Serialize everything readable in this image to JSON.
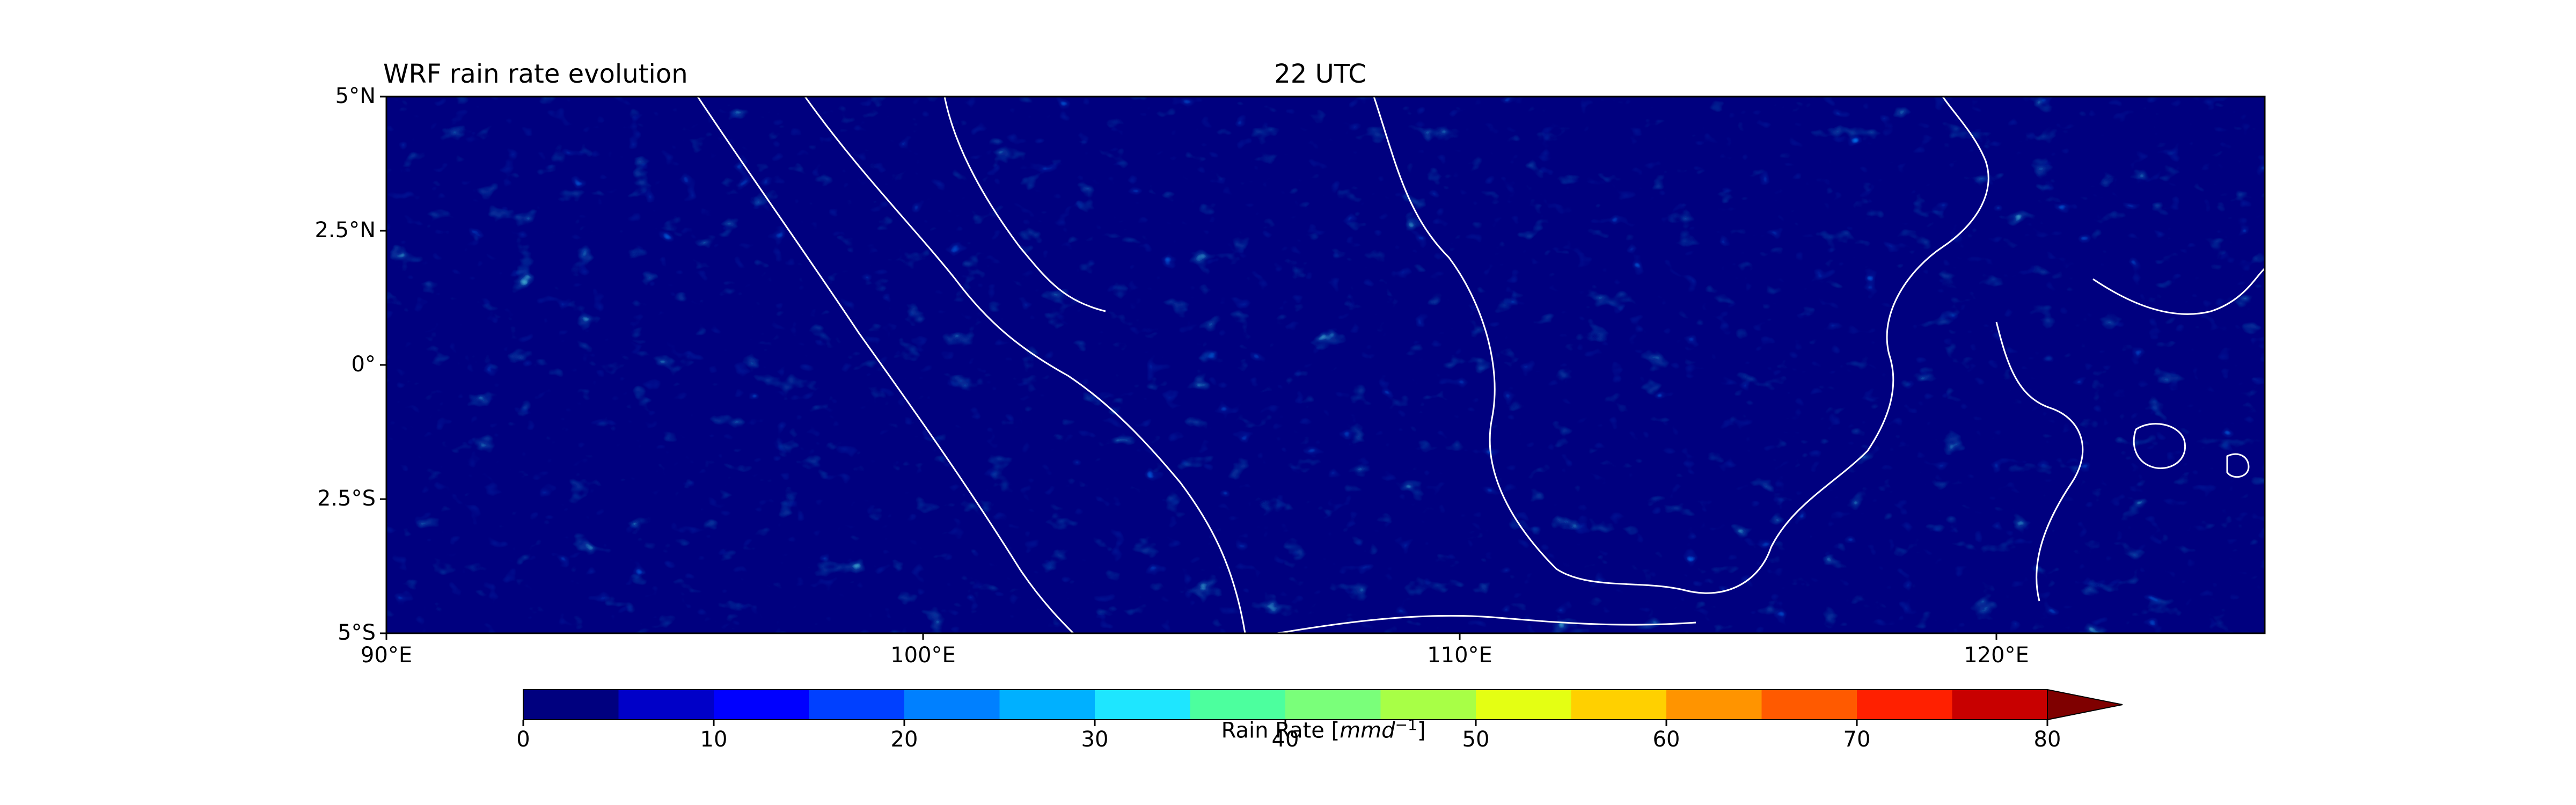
{
  "title_left": "WRF rain rate evolution",
  "title_center": "22 UTC",
  "map": {
    "lon_range": [
      90,
      125
    ],
    "lat_range": [
      -5,
      5
    ],
    "lon_ticks": [
      {
        "value": 90,
        "label": "90°E"
      },
      {
        "value": 100,
        "label": "100°E"
      },
      {
        "value": 110,
        "label": "110°E"
      },
      {
        "value": 120,
        "label": "120°E"
      }
    ],
    "lat_ticks": [
      {
        "value": 5,
        "label": "5°N"
      },
      {
        "value": 2.5,
        "label": "2.5°N"
      },
      {
        "value": 0,
        "label": "0°"
      },
      {
        "value": -2.5,
        "label": "2.5°S"
      },
      {
        "value": -5,
        "label": "5°S"
      }
    ],
    "background_color": "#00007f",
    "coastline_color": "#ffffff"
  },
  "colorbar": {
    "label_text": "Rain Rate [",
    "label_unit": "mmd",
    "label_exponent": "−1",
    "label_close": "]",
    "range": [
      0,
      80
    ],
    "extend": "max",
    "orientation": "horizontal",
    "tick_values": [
      0,
      10,
      20,
      30,
      40,
      50,
      60,
      70,
      80
    ],
    "tick_labels": [
      "0",
      "10",
      "20",
      "30",
      "40",
      "50",
      "60",
      "70",
      "80"
    ],
    "boundaries": [
      0,
      5,
      10,
      15,
      20,
      25,
      30,
      35,
      40,
      45,
      50,
      55,
      60,
      65,
      70,
      75,
      80
    ],
    "colors": [
      "#00007f",
      "#0000c8",
      "#0000ff",
      "#0040ff",
      "#0080ff",
      "#00b0ff",
      "#1ee6ff",
      "#4cff9e",
      "#7aff7a",
      "#a8ff46",
      "#e4ff13",
      "#ffd000",
      "#ff9400",
      "#ff5a00",
      "#ff2000",
      "#c80000"
    ],
    "extend_color": "#7f0000"
  }
}
